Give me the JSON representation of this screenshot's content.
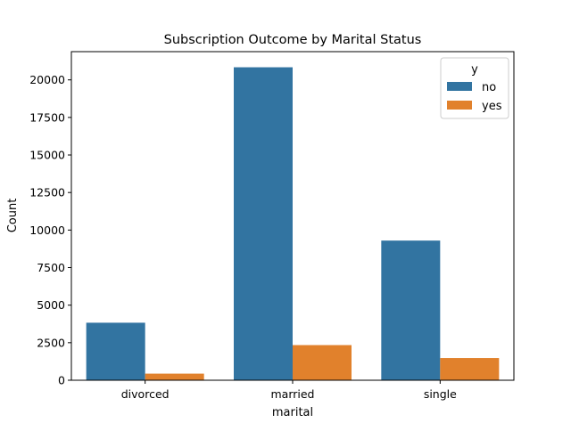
{
  "chart_data": {
    "type": "bar",
    "title": "Subscription Outcome by Marital Status",
    "xlabel": "marital",
    "ylabel": "Count",
    "categories": [
      "divorced",
      "married",
      "single"
    ],
    "series": [
      {
        "name": "no",
        "values": [
          3830,
          20840,
          9300
        ],
        "color": "#3274a1"
      },
      {
        "name": "yes",
        "values": [
          440,
          2340,
          1480
        ],
        "color": "#e1812c"
      }
    ],
    "ylim": [
      0,
      21880
    ],
    "yticks": [
      0,
      2500,
      5000,
      7500,
      10000,
      12500,
      15000,
      17500,
      20000
    ],
    "ytick_labels": [
      "0",
      "2500",
      "5000",
      "7500",
      "10000",
      "12500",
      "15000",
      "17500",
      "20000"
    ],
    "legend": {
      "title": "y",
      "placement": "top-right"
    },
    "grid": false
  }
}
